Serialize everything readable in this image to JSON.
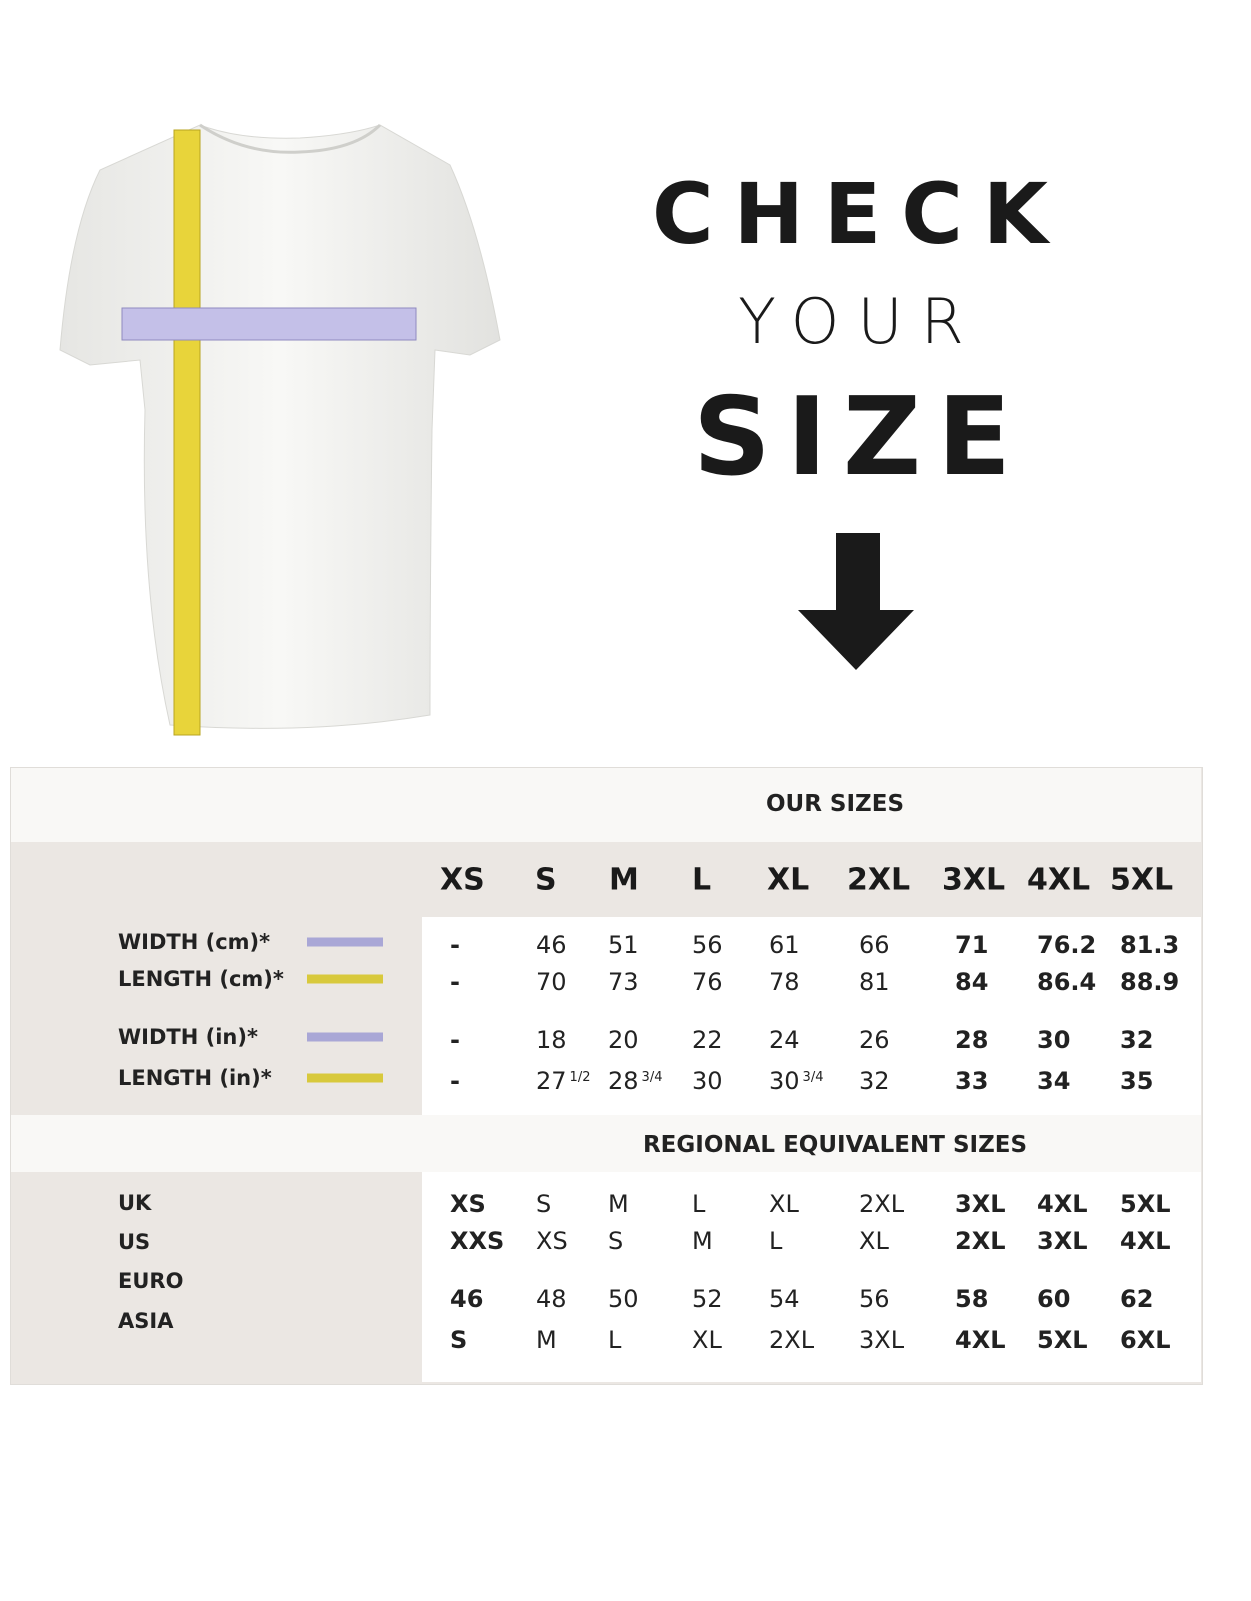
{
  "heading": {
    "line1": "CHECK",
    "line2": "YOUR",
    "line3": "SIZE"
  },
  "icons": {
    "arrow": "arrow-down-icon",
    "shirt": "tshirt-with-tape-measures"
  },
  "colors": {
    "width_tape": "#b9b4e0",
    "length_tape": "#e8d43a",
    "width_swatch": "#a9a7d6",
    "length_swatch": "#d8c93c"
  },
  "our_sizes": {
    "title": "OUR SIZES",
    "sizes": [
      "XS",
      "S",
      "M",
      "L",
      "XL",
      "2XL",
      "3XL",
      "4XL",
      "5XL"
    ],
    "rows": [
      {
        "label": "WIDTH (cm)*",
        "swatch": "width",
        "values": [
          "-",
          "46",
          "51",
          "56",
          "61",
          "66",
          "71",
          "76.2",
          "81.3"
        ]
      },
      {
        "label": "LENGTH (cm)*",
        "swatch": "length",
        "values": [
          "-",
          "70",
          "73",
          "76",
          "78",
          "81",
          "84",
          "86.4",
          "88.9"
        ]
      },
      {
        "label": "WIDTH (in)*",
        "swatch": "width",
        "values": [
          "-",
          "18",
          "20",
          "22",
          "24",
          "26",
          "28",
          "30",
          "32"
        ]
      },
      {
        "label": "LENGTH (in)*",
        "swatch": "length",
        "values": [
          "-",
          "27",
          "28",
          "30",
          "30",
          "32",
          "33",
          "34",
          "35"
        ],
        "fractions": [
          "",
          "1/2",
          "3/4",
          "",
          "3/4",
          "",
          "",
          "",
          ""
        ]
      }
    ]
  },
  "regional": {
    "title": "REGIONAL EQUIVALENT SIZES",
    "rows": [
      {
        "label": "UK",
        "values": [
          "XS",
          "S",
          "M",
          "L",
          "XL",
          "2XL",
          "3XL",
          "4XL",
          "5XL"
        ]
      },
      {
        "label": "US",
        "values": [
          "XXS",
          "XS",
          "S",
          "M",
          "L",
          "XL",
          "2XL",
          "3XL",
          "4XL"
        ]
      },
      {
        "label": "EURO",
        "values": [
          "46",
          "48",
          "50",
          "52",
          "54",
          "56",
          "58",
          "60",
          "62"
        ]
      },
      {
        "label": "ASIA",
        "values": [
          "S",
          "M",
          "L",
          "XL",
          "2XL",
          "3XL",
          "4XL",
          "5XL",
          "6XL"
        ]
      }
    ]
  }
}
